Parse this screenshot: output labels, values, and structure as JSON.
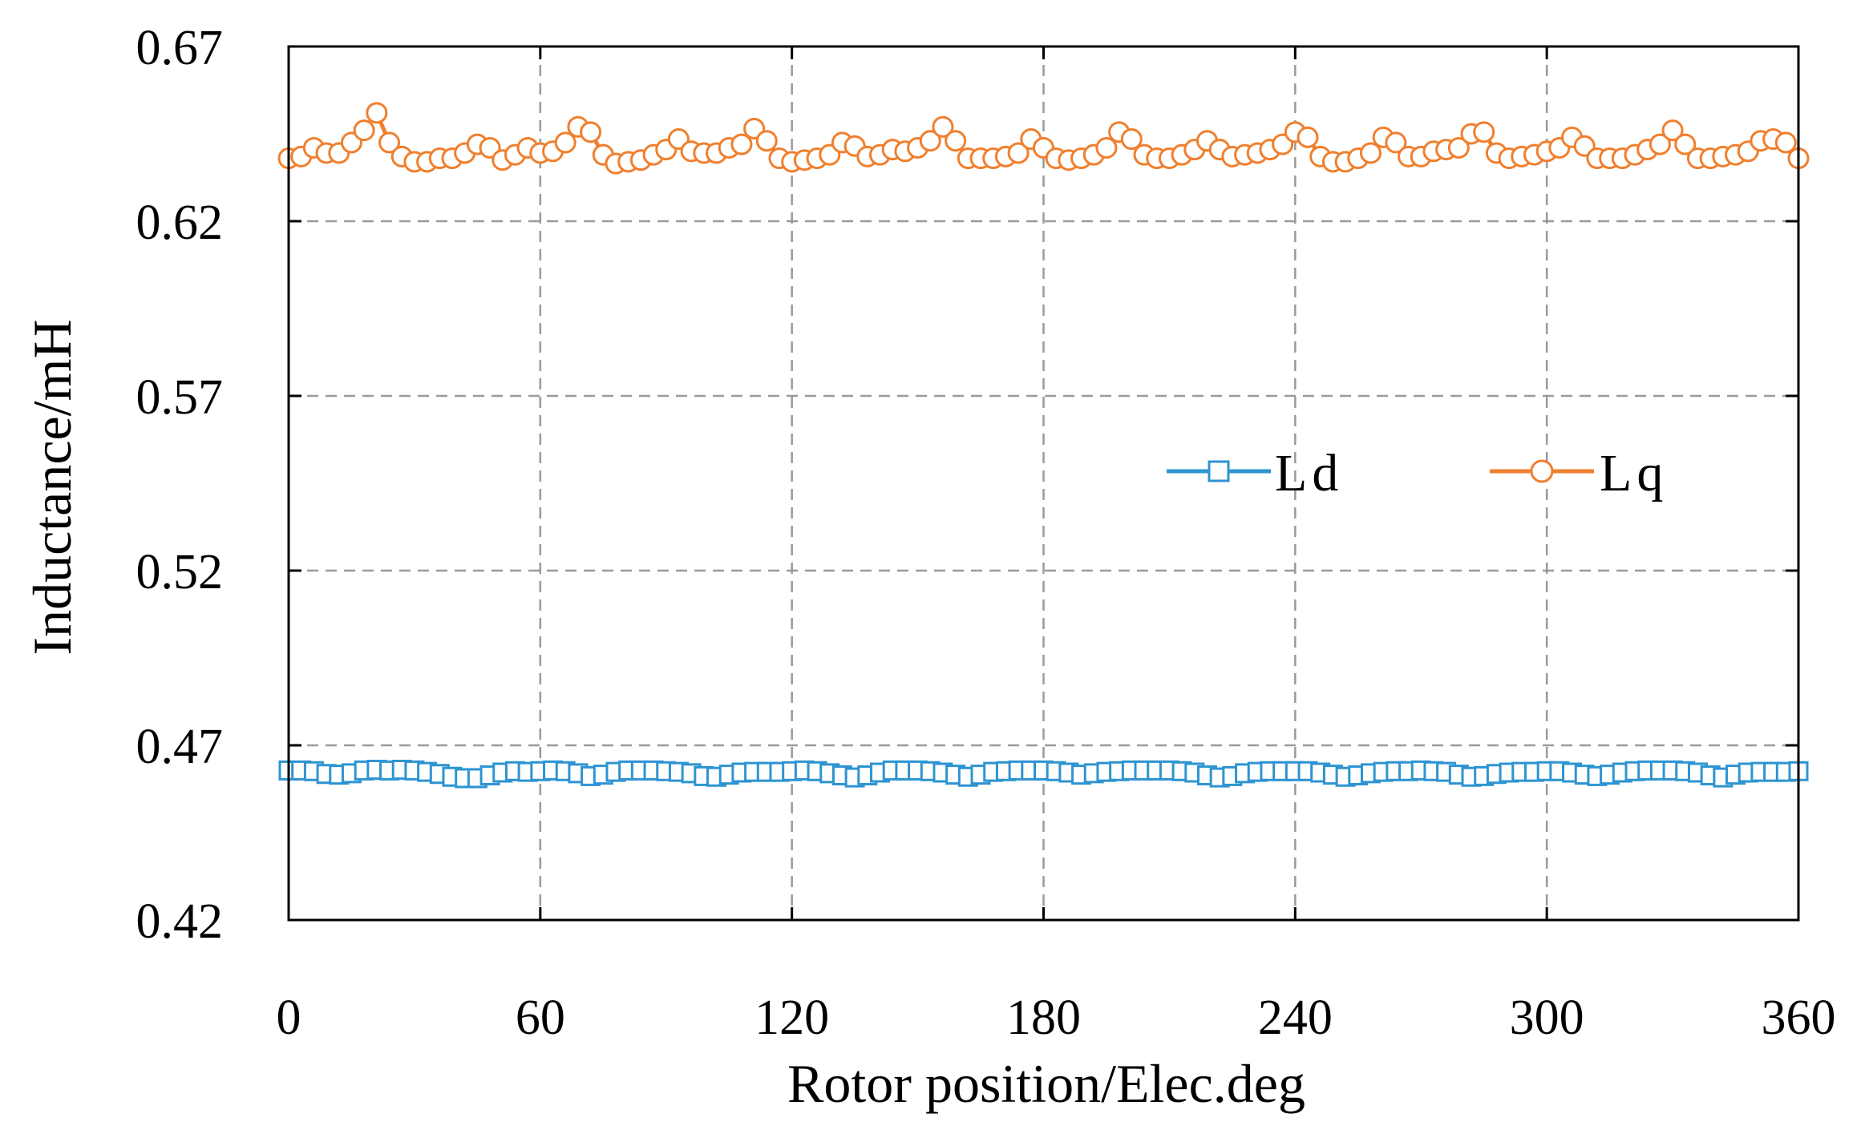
{
  "chart_data": {
    "type": "line",
    "title": "",
    "xlabel": "Rotor position/Elec.deg",
    "ylabel": "Inductance/mH",
    "xlim": [
      0,
      360
    ],
    "ylim": [
      0.42,
      0.67
    ],
    "x_ticks": [
      0,
      60,
      120,
      180,
      240,
      300,
      360
    ],
    "x_tick_labels": [
      "0",
      "60",
      "120",
      "180",
      "240",
      "300",
      "360"
    ],
    "y_ticks": [
      0.42,
      0.47,
      0.52,
      0.57,
      0.62,
      0.67
    ],
    "y_tick_labels": [
      "0.42",
      "0.47",
      "0.52",
      "0.57",
      "0.62",
      "0.67"
    ],
    "grid": true,
    "legend_position": "center-right",
    "x": [
      0,
      3,
      6,
      9,
      12,
      15,
      18,
      21,
      24,
      27,
      30,
      33,
      36,
      39,
      42,
      45,
      48,
      51,
      54,
      57,
      60,
      63,
      66,
      69,
      72,
      75,
      78,
      81,
      84,
      87,
      90,
      93,
      96,
      99,
      102,
      105,
      108,
      111,
      114,
      117,
      120,
      123,
      126,
      129,
      132,
      135,
      138,
      141,
      144,
      147,
      150,
      153,
      156,
      159,
      162,
      165,
      168,
      171,
      174,
      177,
      180,
      183,
      186,
      189,
      192,
      195,
      198,
      201,
      204,
      207,
      210,
      213,
      216,
      219,
      222,
      225,
      228,
      231,
      234,
      237,
      240,
      243,
      246,
      249,
      252,
      255,
      258,
      261,
      264,
      267,
      270,
      273,
      276,
      279,
      282,
      285,
      288,
      291,
      294,
      297,
      300,
      303,
      306,
      309,
      312,
      315,
      318,
      321,
      324,
      327,
      330,
      333,
      336,
      339,
      342,
      345,
      348,
      351,
      354,
      357,
      360
    ],
    "series": [
      {
        "name": "Ld",
        "color": "#2e94d2",
        "marker": "square",
        "values": [
          0.4628,
          0.4628,
          0.4626,
          0.4618,
          0.4616,
          0.462,
          0.4628,
          0.463,
          0.4628,
          0.463,
          0.4628,
          0.4624,
          0.4618,
          0.461,
          0.4606,
          0.4606,
          0.4614,
          0.4622,
          0.4626,
          0.4624,
          0.4626,
          0.4628,
          0.4626,
          0.462,
          0.4612,
          0.4616,
          0.4624,
          0.4628,
          0.4628,
          0.4628,
          0.4626,
          0.4624,
          0.462,
          0.4612,
          0.461,
          0.4616,
          0.4622,
          0.4624,
          0.4624,
          0.4624,
          0.4626,
          0.4628,
          0.4626,
          0.462,
          0.4614,
          0.4608,
          0.4614,
          0.4622,
          0.4628,
          0.4628,
          0.4628,
          0.4626,
          0.4622,
          0.4616,
          0.461,
          0.4616,
          0.4624,
          0.4626,
          0.4628,
          0.4628,
          0.4628,
          0.4626,
          0.4622,
          0.4616,
          0.462,
          0.4624,
          0.4626,
          0.4628,
          0.4628,
          0.4628,
          0.4628,
          0.4626,
          0.4622,
          0.4614,
          0.4608,
          0.4612,
          0.462,
          0.4624,
          0.4626,
          0.4626,
          0.4626,
          0.4626,
          0.4622,
          0.4616,
          0.461,
          0.4614,
          0.462,
          0.4624,
          0.4626,
          0.4626,
          0.4628,
          0.4626,
          0.4624,
          0.4616,
          0.461,
          0.4612,
          0.4618,
          0.4622,
          0.4624,
          0.4624,
          0.4626,
          0.4626,
          0.4622,
          0.4616,
          0.4612,
          0.4616,
          0.4622,
          0.4626,
          0.4628,
          0.4628,
          0.4628,
          0.4626,
          0.4622,
          0.4614,
          0.4608,
          0.4616,
          0.4622,
          0.4624,
          0.4624,
          0.4624,
          0.4626
        ]
      },
      {
        "name": "Lq",
        "color": "#f07f2e",
        "marker": "circle",
        "values": [
          0.638,
          0.6385,
          0.641,
          0.6395,
          0.6395,
          0.6425,
          0.646,
          0.651,
          0.6425,
          0.6385,
          0.637,
          0.637,
          0.638,
          0.638,
          0.6395,
          0.642,
          0.641,
          0.6375,
          0.639,
          0.641,
          0.6395,
          0.64,
          0.6425,
          0.647,
          0.6455,
          0.639,
          0.6365,
          0.637,
          0.6375,
          0.639,
          0.6405,
          0.6435,
          0.64,
          0.6395,
          0.6395,
          0.641,
          0.642,
          0.6465,
          0.643,
          0.638,
          0.637,
          0.6375,
          0.638,
          0.639,
          0.6425,
          0.6415,
          0.6385,
          0.639,
          0.6405,
          0.64,
          0.641,
          0.643,
          0.647,
          0.643,
          0.638,
          0.638,
          0.638,
          0.6385,
          0.6395,
          0.6435,
          0.641,
          0.638,
          0.6375,
          0.638,
          0.639,
          0.641,
          0.6455,
          0.6435,
          0.639,
          0.638,
          0.638,
          0.639,
          0.6405,
          0.643,
          0.6405,
          0.6385,
          0.639,
          0.6395,
          0.6405,
          0.642,
          0.6455,
          0.644,
          0.6385,
          0.637,
          0.637,
          0.638,
          0.6395,
          0.644,
          0.6425,
          0.6385,
          0.6385,
          0.64,
          0.6405,
          0.641,
          0.645,
          0.6455,
          0.6395,
          0.638,
          0.6385,
          0.639,
          0.64,
          0.641,
          0.644,
          0.6415,
          0.638,
          0.638,
          0.638,
          0.639,
          0.6405,
          0.642,
          0.646,
          0.642,
          0.638,
          0.638,
          0.6385,
          0.639,
          0.64,
          0.643,
          0.6435,
          0.6425,
          0.638
        ]
      }
    ]
  }
}
